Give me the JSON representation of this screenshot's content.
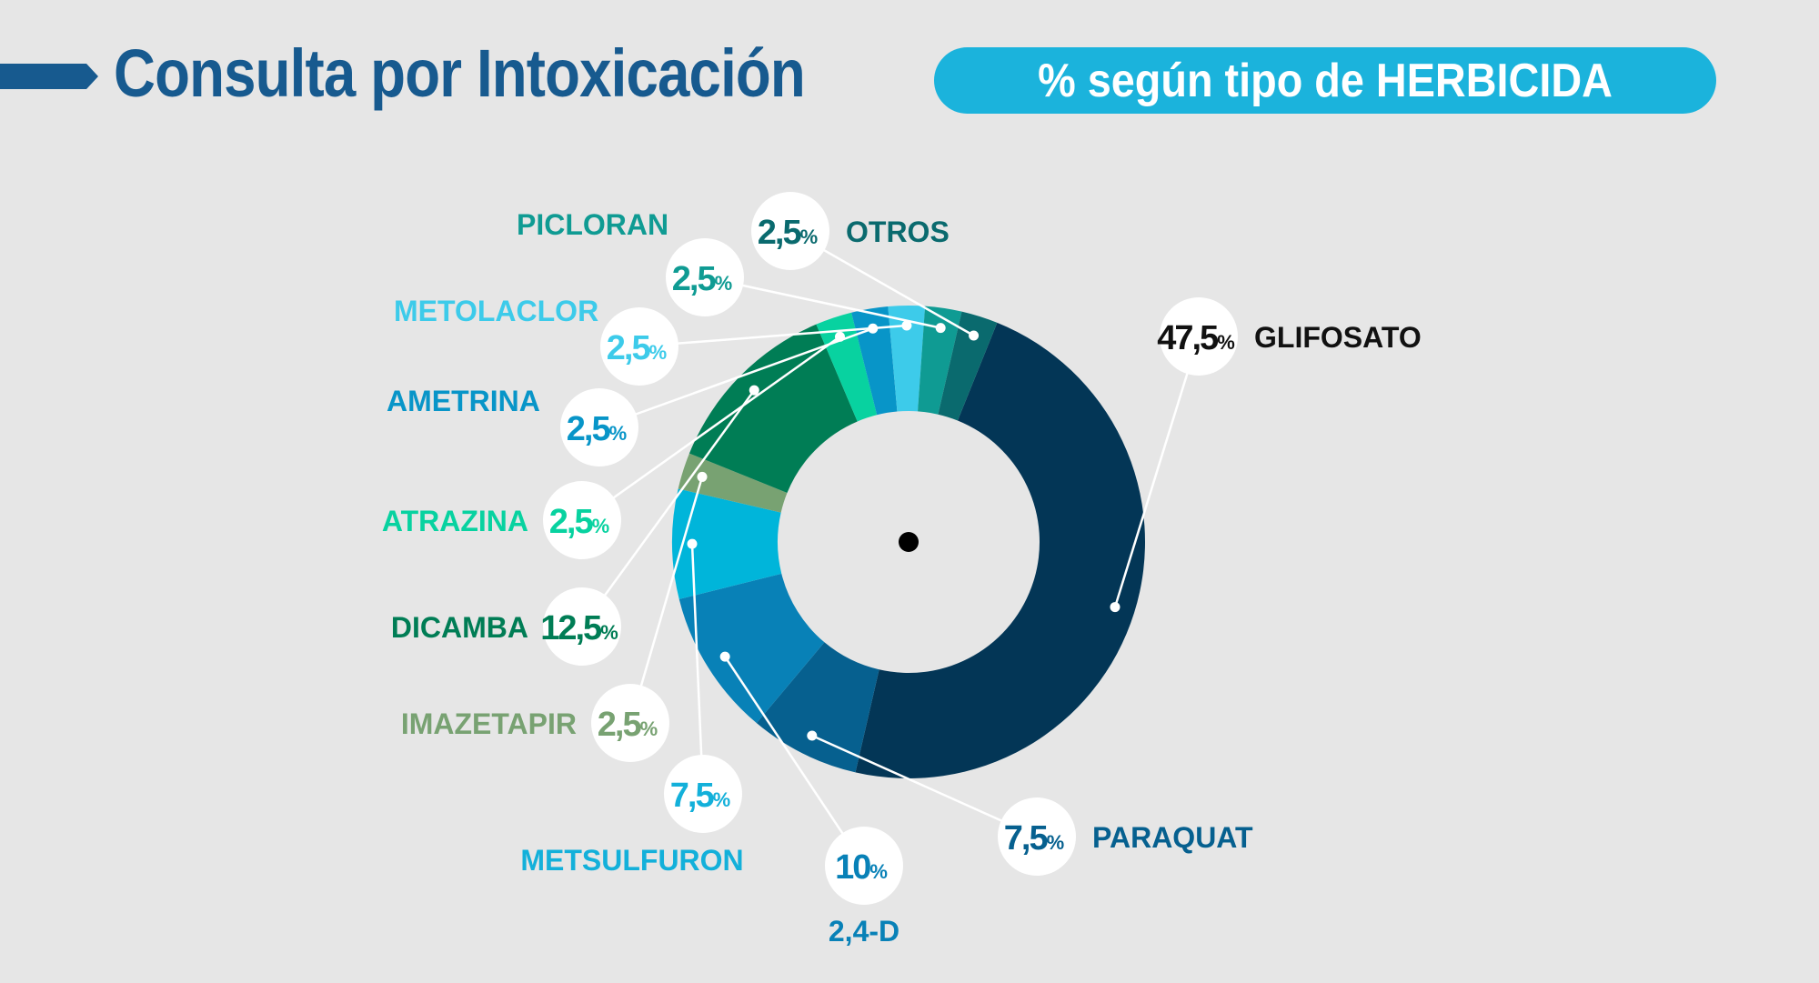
{
  "header": {
    "title": "Consulta por Intoxicación",
    "subtitle": "% según tipo de HERBICIDA"
  },
  "chart_data": {
    "type": "pie",
    "variant": "donut",
    "unit": "%",
    "slices": [
      {
        "label": "GLIFOSATO",
        "value": 47.5,
        "display": "47,5",
        "color": "#033656"
      },
      {
        "label": "PARAQUAT",
        "value": 7.5,
        "display": "7,5",
        "color": "#06608f"
      },
      {
        "label": "2,4-D",
        "value": 10,
        "display": "10",
        "color": "#0881b7"
      },
      {
        "label": "METSULFURON",
        "value": 7.5,
        "display": "7,5",
        "color": "#00b5da"
      },
      {
        "label": "IMAZETAPIR",
        "value": 2.5,
        "display": "2,5",
        "color": "#78a272"
      },
      {
        "label": "DICAMBA",
        "value": 12.5,
        "display": "12,5",
        "color": "#007d55"
      },
      {
        "label": "ATRAZINA",
        "value": 2.5,
        "display": "2,5",
        "color": "#08d2a0"
      },
      {
        "label": "AMETRINA",
        "value": 2.5,
        "display": "2,5",
        "color": "#0895c8"
      },
      {
        "label": "METOLACLOR",
        "value": 2.5,
        "display": "2,5",
        "color": "#3dcbea"
      },
      {
        "label": "PICLORAN",
        "value": 2.5,
        "display": "2,5",
        "color": "#0f9b93"
      },
      {
        "label": "OTROS",
        "value": 2.5,
        "display": "2,5",
        "color": "#0a6a6e"
      }
    ],
    "label_colors": {
      "GLIFOSATO": "#111111",
      "PARAQUAT": "#06608f",
      "2,4-D": "#0881b7",
      "METSULFURON": "#13b0da",
      "IMAZETAPIR": "#78a272",
      "DICAMBA": "#007d55",
      "ATRAZINA": "#08d2a0",
      "AMETRINA": "#0895c8",
      "METOLACLOR": "#3dcbea",
      "PICLORAN": "#0f9b93",
      "OTROS": "#0a6a6e"
    }
  }
}
